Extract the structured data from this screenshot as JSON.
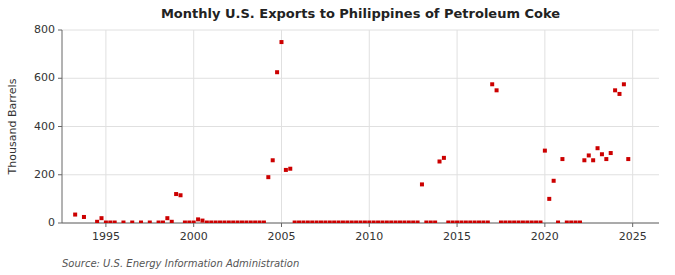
{
  "chart_data": {
    "type": "scatter",
    "title": "Monthly U.S. Exports to Philippines of Petroleum Coke",
    "y_label": "Thousand Barrels",
    "annotations": [
      "Source: U.S. Energy Information Administration"
    ],
    "color": "#cc0000",
    "marker": "square",
    "grid": true,
    "xlim": [
      1992.5,
      2026.5
    ],
    "xticks": [
      1995,
      2000,
      2005,
      2010,
      2015,
      2020,
      2025
    ],
    "ylim": [
      0,
      800
    ],
    "yticks": [
      0,
      200,
      400,
      600,
      800
    ],
    "x": [
      1993.25,
      1993.75,
      1994.5,
      1994.75,
      1995.0,
      1995.25,
      1995.5,
      1996.0,
      1996.5,
      1997.0,
      1997.5,
      1998.0,
      1998.25,
      1998.5,
      1998.75,
      1999.0,
      1999.25,
      1999.5,
      1999.75,
      2000.0,
      2000.25,
      2000.5,
      2000.75,
      2001.0,
      2001.25,
      2001.5,
      2001.75,
      2002.0,
      2002.25,
      2002.5,
      2002.75,
      2003.0,
      2003.25,
      2003.5,
      2003.75,
      2004.0,
      2004.25,
      2004.5,
      2004.75,
      2005.0,
      2005.25,
      2005.5,
      2005.75,
      2006.0,
      2006.25,
      2006.5,
      2006.75,
      2007.0,
      2007.25,
      2007.5,
      2007.75,
      2008.0,
      2008.25,
      2008.5,
      2008.75,
      2009.0,
      2009.25,
      2009.5,
      2009.75,
      2010.0,
      2010.25,
      2010.5,
      2010.75,
      2011.0,
      2011.25,
      2011.5,
      2011.75,
      2012.0,
      2012.25,
      2012.5,
      2012.75,
      2013.0,
      2013.25,
      2013.5,
      2013.75,
      2014.0,
      2014.25,
      2014.5,
      2014.75,
      2015.0,
      2015.25,
      2015.5,
      2015.75,
      2016.0,
      2016.25,
      2016.5,
      2016.75,
      2017.0,
      2017.25,
      2017.5,
      2017.75,
      2018.0,
      2018.25,
      2018.5,
      2018.75,
      2019.0,
      2019.25,
      2019.5,
      2019.75,
      2020.0,
      2020.25,
      2020.5,
      2020.75,
      2021.0,
      2021.25,
      2021.5,
      2021.75,
      2022.0,
      2022.25,
      2022.5,
      2022.75,
      2023.0,
      2023.25,
      2023.5,
      2023.75,
      2024.0,
      2024.25,
      2024.5,
      2024.75
    ],
    "values": [
      35,
      25,
      5,
      20,
      2,
      2,
      2,
      2,
      2,
      2,
      2,
      2,
      2,
      20,
      5,
      120,
      115,
      2,
      2,
      2,
      15,
      10,
      2,
      2,
      2,
      2,
      2,
      2,
      2,
      2,
      2,
      2,
      2,
      2,
      2,
      2,
      190,
      260,
      625,
      750,
      220,
      225,
      2,
      2,
      2,
      2,
      2,
      2,
      2,
      2,
      2,
      2,
      2,
      2,
      2,
      2,
      2,
      2,
      2,
      2,
      2,
      2,
      2,
      2,
      2,
      2,
      2,
      2,
      2,
      2,
      2,
      160,
      2,
      2,
      2,
      255,
      270,
      2,
      2,
      2,
      2,
      2,
      2,
      2,
      2,
      2,
      2,
      575,
      550,
      2,
      2,
      2,
      2,
      2,
      2,
      2,
      2,
      2,
      2,
      300,
      100,
      175,
      2,
      265,
      2,
      2,
      2,
      2,
      260,
      280,
      260,
      310,
      285,
      265,
      290,
      550,
      535,
      575,
      265
    ]
  }
}
